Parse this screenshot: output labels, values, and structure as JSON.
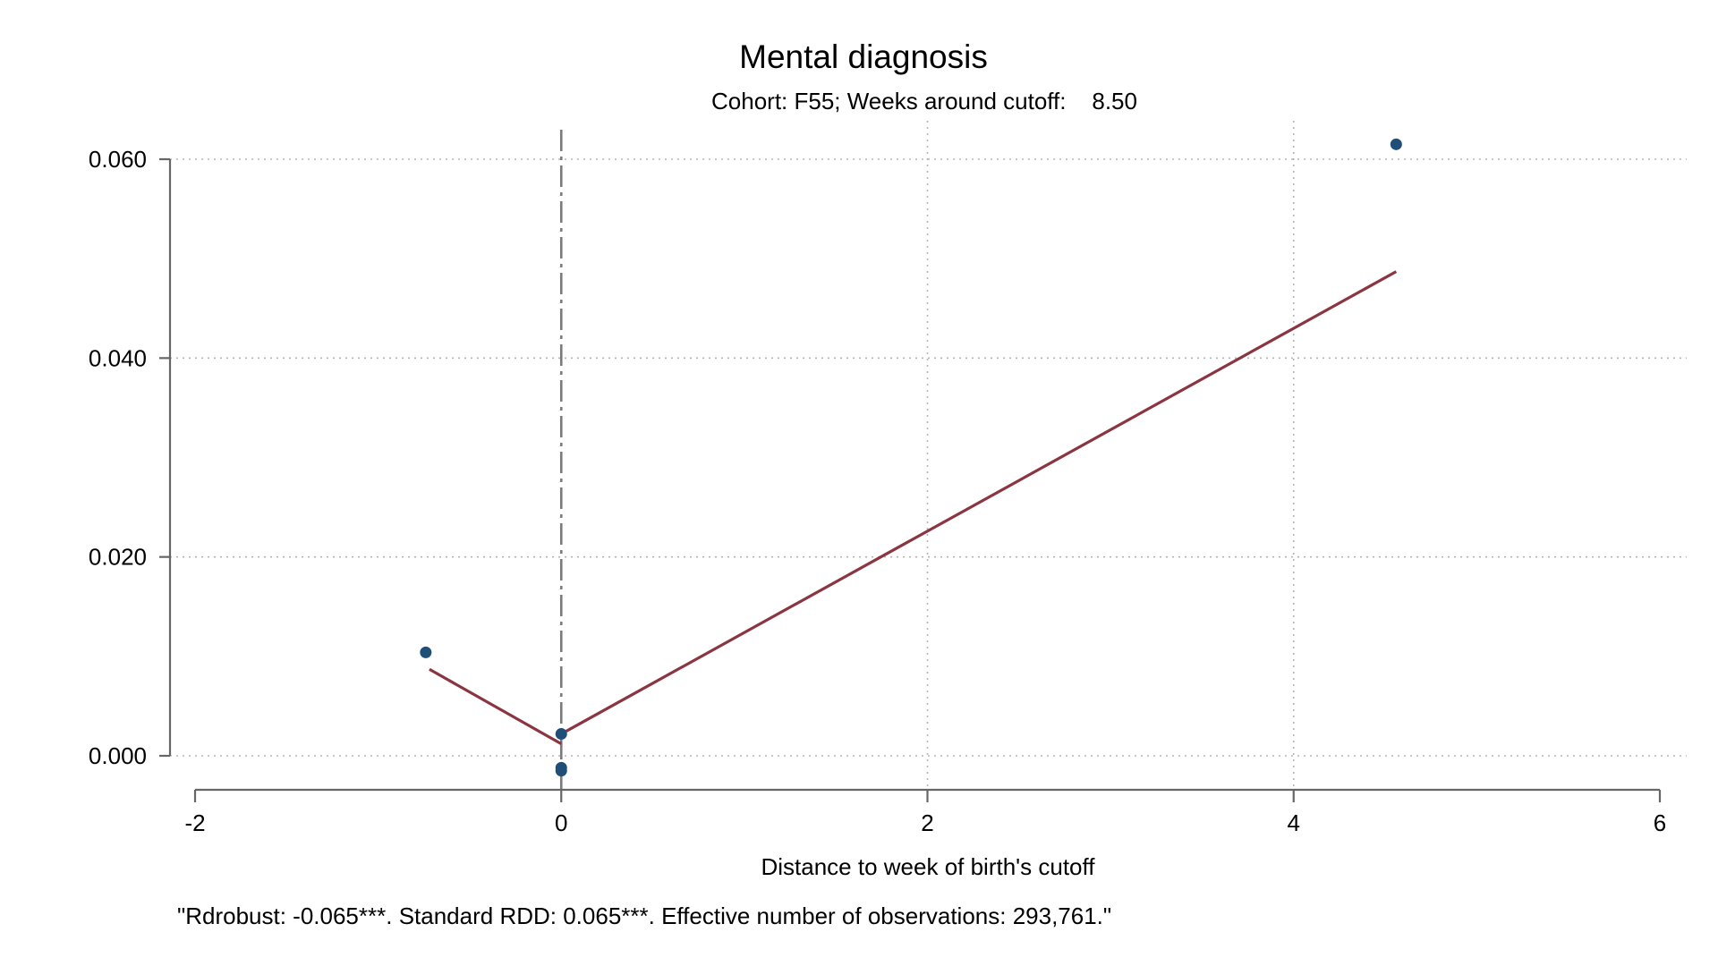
{
  "chart_data": {
    "type": "scatter",
    "title": "Mental diagnosis",
    "subtitle": "Cohort: F55; Weeks around cutoff:    8.50",
    "xlabel": "Distance to week of birth's cutoff",
    "ylabel": "",
    "note": "\"Rdrobust: -0.065***. Standard RDD: 0.065***. Effective number of observations: 293,761.\"",
    "xlim": [
      -2,
      6
    ],
    "ylim": [
      0.0,
      0.06
    ],
    "xticks": [
      -2,
      0,
      2,
      4,
      6
    ],
    "xtick_labels": [
      "-2",
      "0",
      "2",
      "4",
      "6"
    ],
    "yticks": [
      0.0,
      0.02,
      0.04,
      0.06
    ],
    "ytick_labels": [
      "0.000",
      "0.020",
      "0.040",
      "0.060"
    ],
    "grid": true,
    "cutoff_line_x": 0,
    "series": [
      {
        "kind": "scatter",
        "color": "#1f4e79",
        "points": [
          {
            "x": -0.74,
            "y": 0.0104
          },
          {
            "x": 0.0,
            "y": 0.0022
          },
          {
            "x": 0.0,
            "y": -0.0012
          },
          {
            "x": 0.0,
            "y": -0.0015
          },
          {
            "x": 4.56,
            "y": 0.0615
          }
        ]
      },
      {
        "kind": "line",
        "color": "#8b3540",
        "segment": "left",
        "points": [
          {
            "x": -0.72,
            "y": 0.0087
          },
          {
            "x": 0.0,
            "y": 0.0012
          }
        ]
      },
      {
        "kind": "line",
        "color": "#8b3540",
        "segment": "right",
        "points": [
          {
            "x": 0.0,
            "y": 0.0022
          },
          {
            "x": 4.56,
            "y": 0.0487
          }
        ]
      }
    ]
  }
}
